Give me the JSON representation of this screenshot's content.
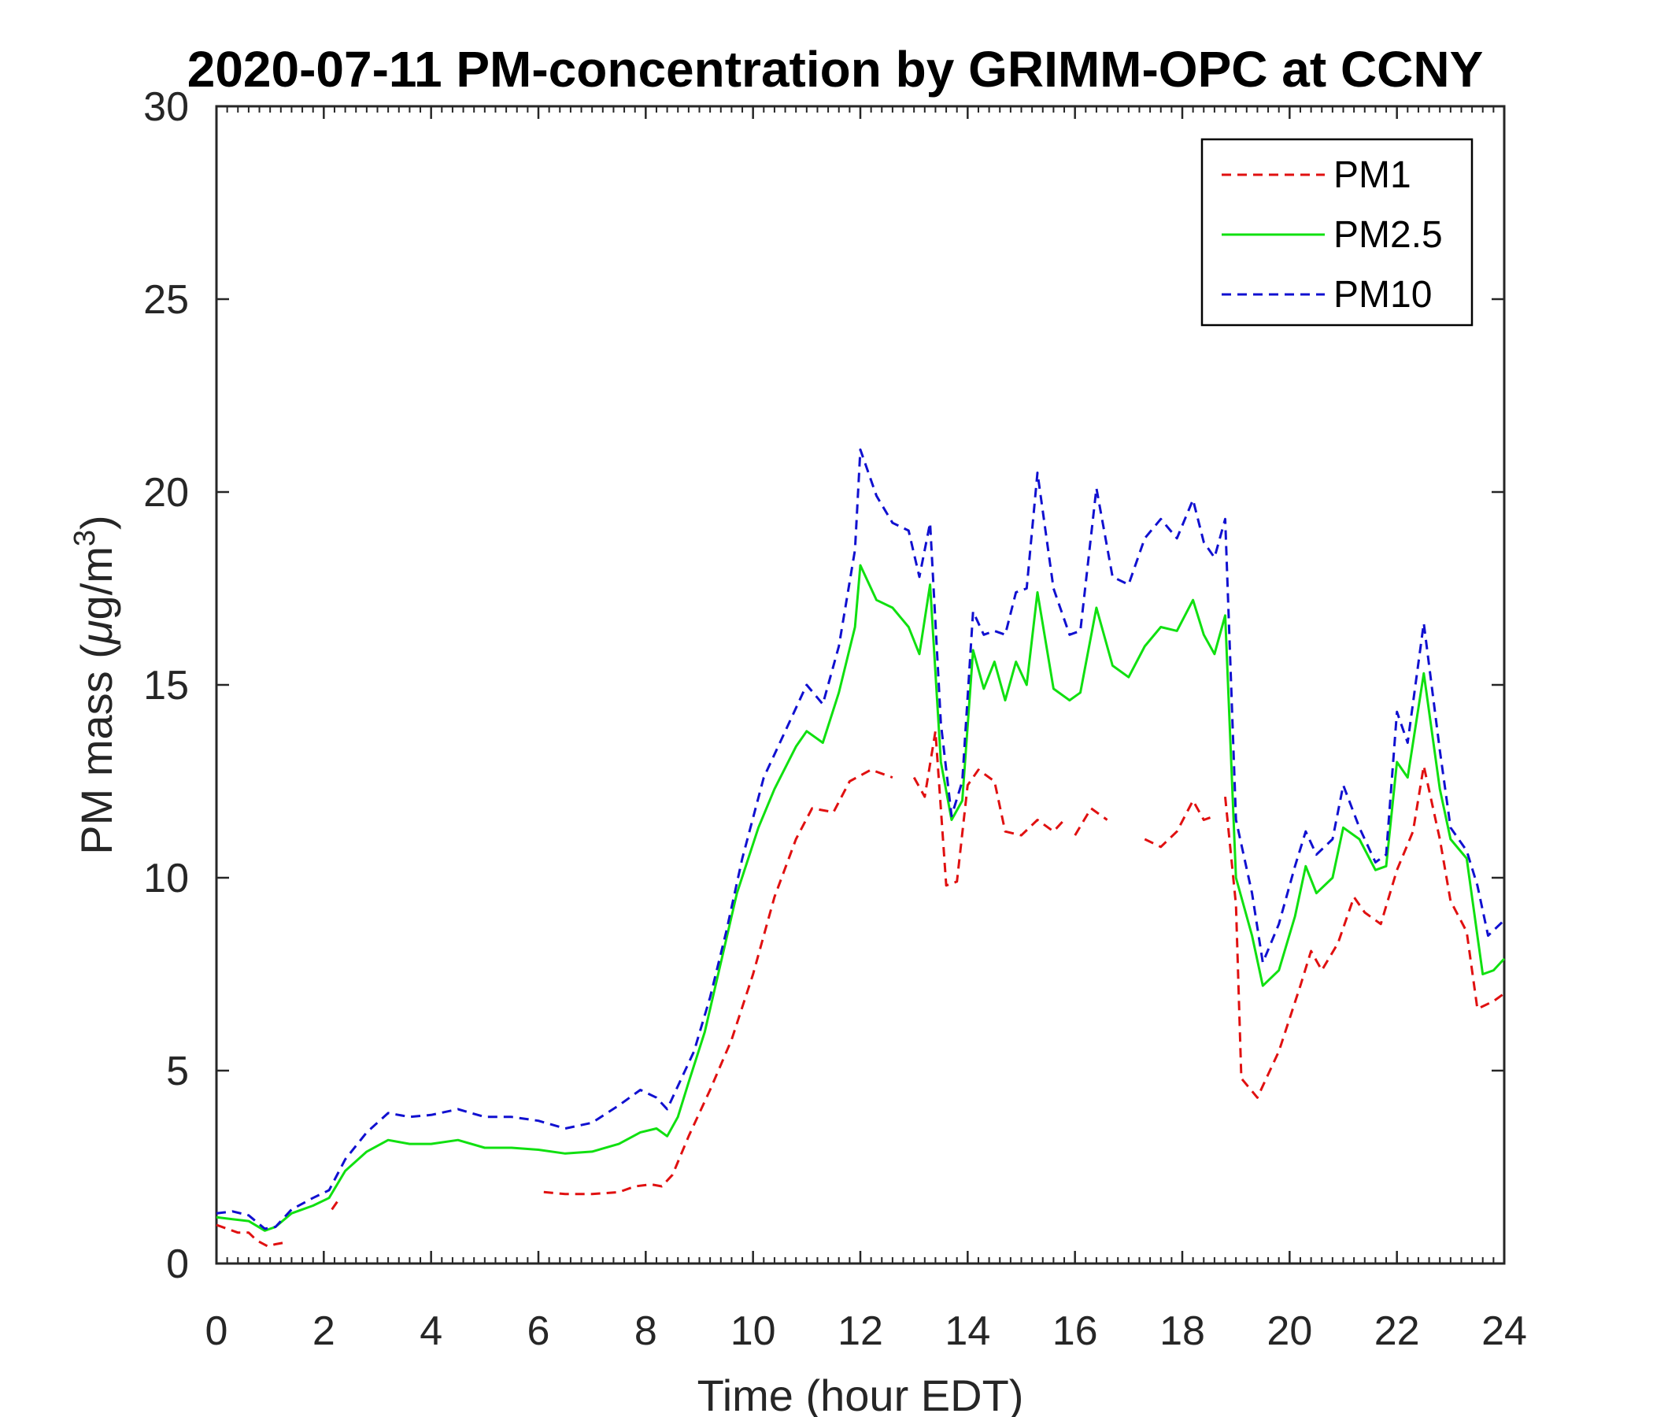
{
  "chart_data": {
    "type": "line",
    "title": "2020-07-11 PM-concentration by GRIMM-OPC at CCNY",
    "xlabel": "Time (hour EDT)",
    "ylabel": "PM mass (μg/m³)",
    "ylabel_main": "PM mass (",
    "ylabel_unit_mu": "μ",
    "ylabel_unit_rest": "g/m",
    "ylabel_sup": "3",
    "ylabel_close": ")",
    "xlim": [
      0,
      24
    ],
    "ylim": [
      0,
      30
    ],
    "xticks": [
      0,
      2,
      4,
      6,
      8,
      10,
      12,
      14,
      16,
      18,
      20,
      22,
      24
    ],
    "yticks": [
      0,
      5,
      10,
      15,
      20,
      25,
      30
    ],
    "grid": false,
    "legend_position": "top-right",
    "series": [
      {
        "name": "PM1",
        "color": "#e01010",
        "dash": "dashed",
        "segments": [
          [
            [
              0,
              1.0
            ],
            [
              0.2,
              0.9
            ],
            [
              0.4,
              0.8
            ],
            [
              0.6,
              0.8
            ],
            [
              0.75,
              0.6
            ],
            [
              0.95,
              0.45
            ],
            [
              1.1,
              0.5
            ],
            [
              1.3,
              0.55
            ]
          ],
          [
            [
              2.15,
              1.4
            ],
            [
              2.25,
              1.6
            ]
          ],
          [
            [
              6.1,
              1.85
            ],
            [
              6.5,
              1.8
            ],
            [
              7.0,
              1.8
            ],
            [
              7.5,
              1.85
            ],
            [
              7.8,
              2.0
            ],
            [
              8.1,
              2.05
            ],
            [
              8.3,
              2.0
            ],
            [
              8.5,
              2.3
            ],
            [
              8.8,
              3.3
            ],
            [
              9.2,
              4.5
            ],
            [
              9.6,
              5.8
            ],
            [
              10.0,
              7.5
            ],
            [
              10.4,
              9.5
            ],
            [
              10.8,
              11.0
            ],
            [
              11.1,
              11.8
            ],
            [
              11.5,
              11.7
            ],
            [
              11.8,
              12.5
            ],
            [
              12.2,
              12.8
            ],
            [
              12.6,
              12.6
            ]
          ],
          [
            [
              13.0,
              12.6
            ],
            [
              13.2,
              12.1
            ],
            [
              13.4,
              13.8
            ],
            [
              13.6,
              9.8
            ],
            [
              13.8,
              9.9
            ],
            [
              14.0,
              12.4
            ],
            [
              14.2,
              12.8
            ],
            [
              14.5,
              12.5
            ],
            [
              14.7,
              11.2
            ],
            [
              15.0,
              11.1
            ],
            [
              15.3,
              11.5
            ],
            [
              15.6,
              11.2
            ],
            [
              15.8,
              11.5
            ]
          ],
          [
            [
              16.0,
              11.1
            ],
            [
              16.3,
              11.8
            ],
            [
              16.6,
              11.5
            ]
          ],
          [
            [
              17.3,
              11.0
            ],
            [
              17.6,
              10.8
            ],
            [
              17.9,
              11.2
            ],
            [
              18.2,
              12.0
            ],
            [
              18.4,
              11.5
            ],
            [
              18.6,
              11.6
            ]
          ],
          [
            [
              18.8,
              12.1
            ],
            [
              19.0,
              9.3
            ],
            [
              19.1,
              4.8
            ],
            [
              19.4,
              4.3
            ],
            [
              19.8,
              5.5
            ],
            [
              20.2,
              7.2
            ],
            [
              20.4,
              8.1
            ],
            [
              20.6,
              7.6
            ],
            [
              20.9,
              8.3
            ],
            [
              21.2,
              9.5
            ],
            [
              21.4,
              9.1
            ],
            [
              21.7,
              8.8
            ],
            [
              22.0,
              10.2
            ],
            [
              22.3,
              11.2
            ],
            [
              22.5,
              12.9
            ],
            [
              22.8,
              11.0
            ],
            [
              23.0,
              9.4
            ],
            [
              23.3,
              8.6
            ],
            [
              23.5,
              6.6
            ],
            [
              23.8,
              6.8
            ],
            [
              24.0,
              7.0
            ]
          ]
        ]
      },
      {
        "name": "PM2.5",
        "color": "#10e010",
        "dash": "solid",
        "segments": [
          [
            [
              0,
              1.2
            ],
            [
              0.3,
              1.15
            ],
            [
              0.6,
              1.1
            ],
            [
              0.9,
              0.85
            ],
            [
              1.1,
              0.95
            ],
            [
              1.4,
              1.3
            ],
            [
              1.8,
              1.5
            ],
            [
              2.1,
              1.7
            ],
            [
              2.4,
              2.4
            ],
            [
              2.8,
              2.9
            ],
            [
              3.2,
              3.2
            ],
            [
              3.6,
              3.1
            ],
            [
              4.0,
              3.1
            ],
            [
              4.5,
              3.2
            ],
            [
              5.0,
              3.0
            ],
            [
              5.5,
              3.0
            ],
            [
              6.0,
              2.95
            ],
            [
              6.5,
              2.85
            ],
            [
              7.0,
              2.9
            ],
            [
              7.5,
              3.1
            ],
            [
              7.9,
              3.4
            ],
            [
              8.2,
              3.5
            ],
            [
              8.4,
              3.3
            ],
            [
              8.6,
              3.8
            ],
            [
              8.8,
              4.7
            ],
            [
              9.1,
              6.0
            ],
            [
              9.4,
              7.8
            ],
            [
              9.7,
              9.6
            ],
            [
              10.1,
              11.3
            ],
            [
              10.4,
              12.3
            ],
            [
              10.8,
              13.4
            ],
            [
              11.0,
              13.8
            ],
            [
              11.3,
              13.5
            ],
            [
              11.6,
              14.8
            ],
            [
              11.9,
              16.5
            ],
            [
              12.0,
              18.1
            ],
            [
              12.3,
              17.2
            ],
            [
              12.6,
              17.0
            ],
            [
              12.9,
              16.5
            ],
            [
              13.1,
              15.8
            ],
            [
              13.3,
              17.6
            ],
            [
              13.5,
              13.0
            ],
            [
              13.7,
              11.5
            ],
            [
              13.9,
              12.0
            ],
            [
              14.1,
              15.9
            ],
            [
              14.3,
              14.9
            ],
            [
              14.5,
              15.6
            ],
            [
              14.7,
              14.6
            ],
            [
              14.9,
              15.6
            ],
            [
              15.1,
              15.0
            ],
            [
              15.3,
              17.4
            ],
            [
              15.6,
              14.9
            ],
            [
              15.9,
              14.6
            ],
            [
              16.1,
              14.8
            ],
            [
              16.4,
              17.0
            ],
            [
              16.7,
              15.5
            ],
            [
              17.0,
              15.2
            ],
            [
              17.3,
              16.0
            ],
            [
              17.6,
              16.5
            ],
            [
              17.9,
              16.4
            ],
            [
              18.2,
              17.2
            ],
            [
              18.4,
              16.3
            ],
            [
              18.6,
              15.8
            ],
            [
              18.8,
              16.8
            ],
            [
              19.0,
              10.0
            ],
            [
              19.3,
              8.5
            ],
            [
              19.5,
              7.2
            ],
            [
              19.8,
              7.6
            ],
            [
              20.1,
              9.0
            ],
            [
              20.3,
              10.3
            ],
            [
              20.5,
              9.6
            ],
            [
              20.8,
              10.0
            ],
            [
              21.0,
              11.3
            ],
            [
              21.3,
              11.0
            ],
            [
              21.6,
              10.2
            ],
            [
              21.8,
              10.3
            ],
            [
              22.0,
              13.0
            ],
            [
              22.2,
              12.6
            ],
            [
              22.5,
              15.3
            ],
            [
              22.8,
              12.3
            ],
            [
              23.0,
              11.0
            ],
            [
              23.3,
              10.5
            ],
            [
              23.6,
              7.5
            ],
            [
              23.8,
              7.6
            ],
            [
              24.0,
              7.9
            ]
          ]
        ]
      },
      {
        "name": "PM10",
        "color": "#1010d0",
        "dash": "dashed",
        "segments": [
          [
            [
              0,
              1.3
            ],
            [
              0.3,
              1.35
            ],
            [
              0.6,
              1.25
            ],
            [
              0.9,
              0.9
            ],
            [
              1.1,
              0.95
            ],
            [
              1.4,
              1.4
            ],
            [
              1.8,
              1.7
            ],
            [
              2.1,
              1.9
            ],
            [
              2.4,
              2.7
            ],
            [
              2.8,
              3.4
            ],
            [
              3.2,
              3.9
            ],
            [
              3.6,
              3.8
            ],
            [
              4.0,
              3.85
            ],
            [
              4.5,
              4.0
            ],
            [
              5.0,
              3.8
            ],
            [
              5.5,
              3.8
            ],
            [
              6.0,
              3.7
            ],
            [
              6.5,
              3.5
            ],
            [
              7.0,
              3.65
            ],
            [
              7.5,
              4.1
            ],
            [
              7.9,
              4.5
            ],
            [
              8.2,
              4.3
            ],
            [
              8.4,
              4.0
            ],
            [
              8.6,
              4.6
            ],
            [
              8.9,
              5.5
            ],
            [
              9.2,
              6.9
            ],
            [
              9.5,
              8.6
            ],
            [
              9.8,
              10.5
            ],
            [
              10.2,
              12.6
            ],
            [
              10.6,
              13.8
            ],
            [
              11.0,
              15.0
            ],
            [
              11.3,
              14.5
            ],
            [
              11.6,
              16.0
            ],
            [
              11.9,
              18.5
            ],
            [
              12.0,
              21.1
            ],
            [
              12.3,
              19.9
            ],
            [
              12.6,
              19.2
            ],
            [
              12.9,
              19.0
            ],
            [
              13.1,
              17.8
            ],
            [
              13.3,
              19.2
            ],
            [
              13.5,
              14.0
            ],
            [
              13.7,
              11.6
            ],
            [
              13.9,
              12.5
            ],
            [
              14.1,
              16.9
            ],
            [
              14.3,
              16.3
            ],
            [
              14.5,
              16.4
            ],
            [
              14.7,
              16.3
            ],
            [
              14.9,
              17.4
            ],
            [
              15.1,
              17.5
            ],
            [
              15.3,
              20.5
            ],
            [
              15.6,
              17.5
            ],
            [
              15.9,
              16.3
            ],
            [
              16.1,
              16.4
            ],
            [
              16.4,
              20.1
            ],
            [
              16.7,
              17.8
            ],
            [
              17.0,
              17.6
            ],
            [
              17.3,
              18.8
            ],
            [
              17.6,
              19.3
            ],
            [
              17.9,
              18.8
            ],
            [
              18.2,
              19.8
            ],
            [
              18.4,
              18.7
            ],
            [
              18.6,
              18.3
            ],
            [
              18.8,
              19.3
            ],
            [
              19.0,
              11.5
            ],
            [
              19.3,
              9.6
            ],
            [
              19.5,
              7.8
            ],
            [
              19.8,
              8.8
            ],
            [
              20.1,
              10.3
            ],
            [
              20.3,
              11.2
            ],
            [
              20.5,
              10.6
            ],
            [
              20.8,
              11.0
            ],
            [
              21.0,
              12.4
            ],
            [
              21.3,
              11.3
            ],
            [
              21.6,
              10.4
            ],
            [
              21.8,
              10.6
            ],
            [
              22.0,
              14.3
            ],
            [
              22.2,
              13.5
            ],
            [
              22.5,
              16.6
            ],
            [
              22.8,
              13.3
            ],
            [
              23.0,
              11.3
            ],
            [
              23.3,
              10.7
            ],
            [
              23.5,
              9.8
            ],
            [
              23.7,
              8.5
            ],
            [
              24.0,
              8.9
            ]
          ]
        ]
      }
    ]
  }
}
